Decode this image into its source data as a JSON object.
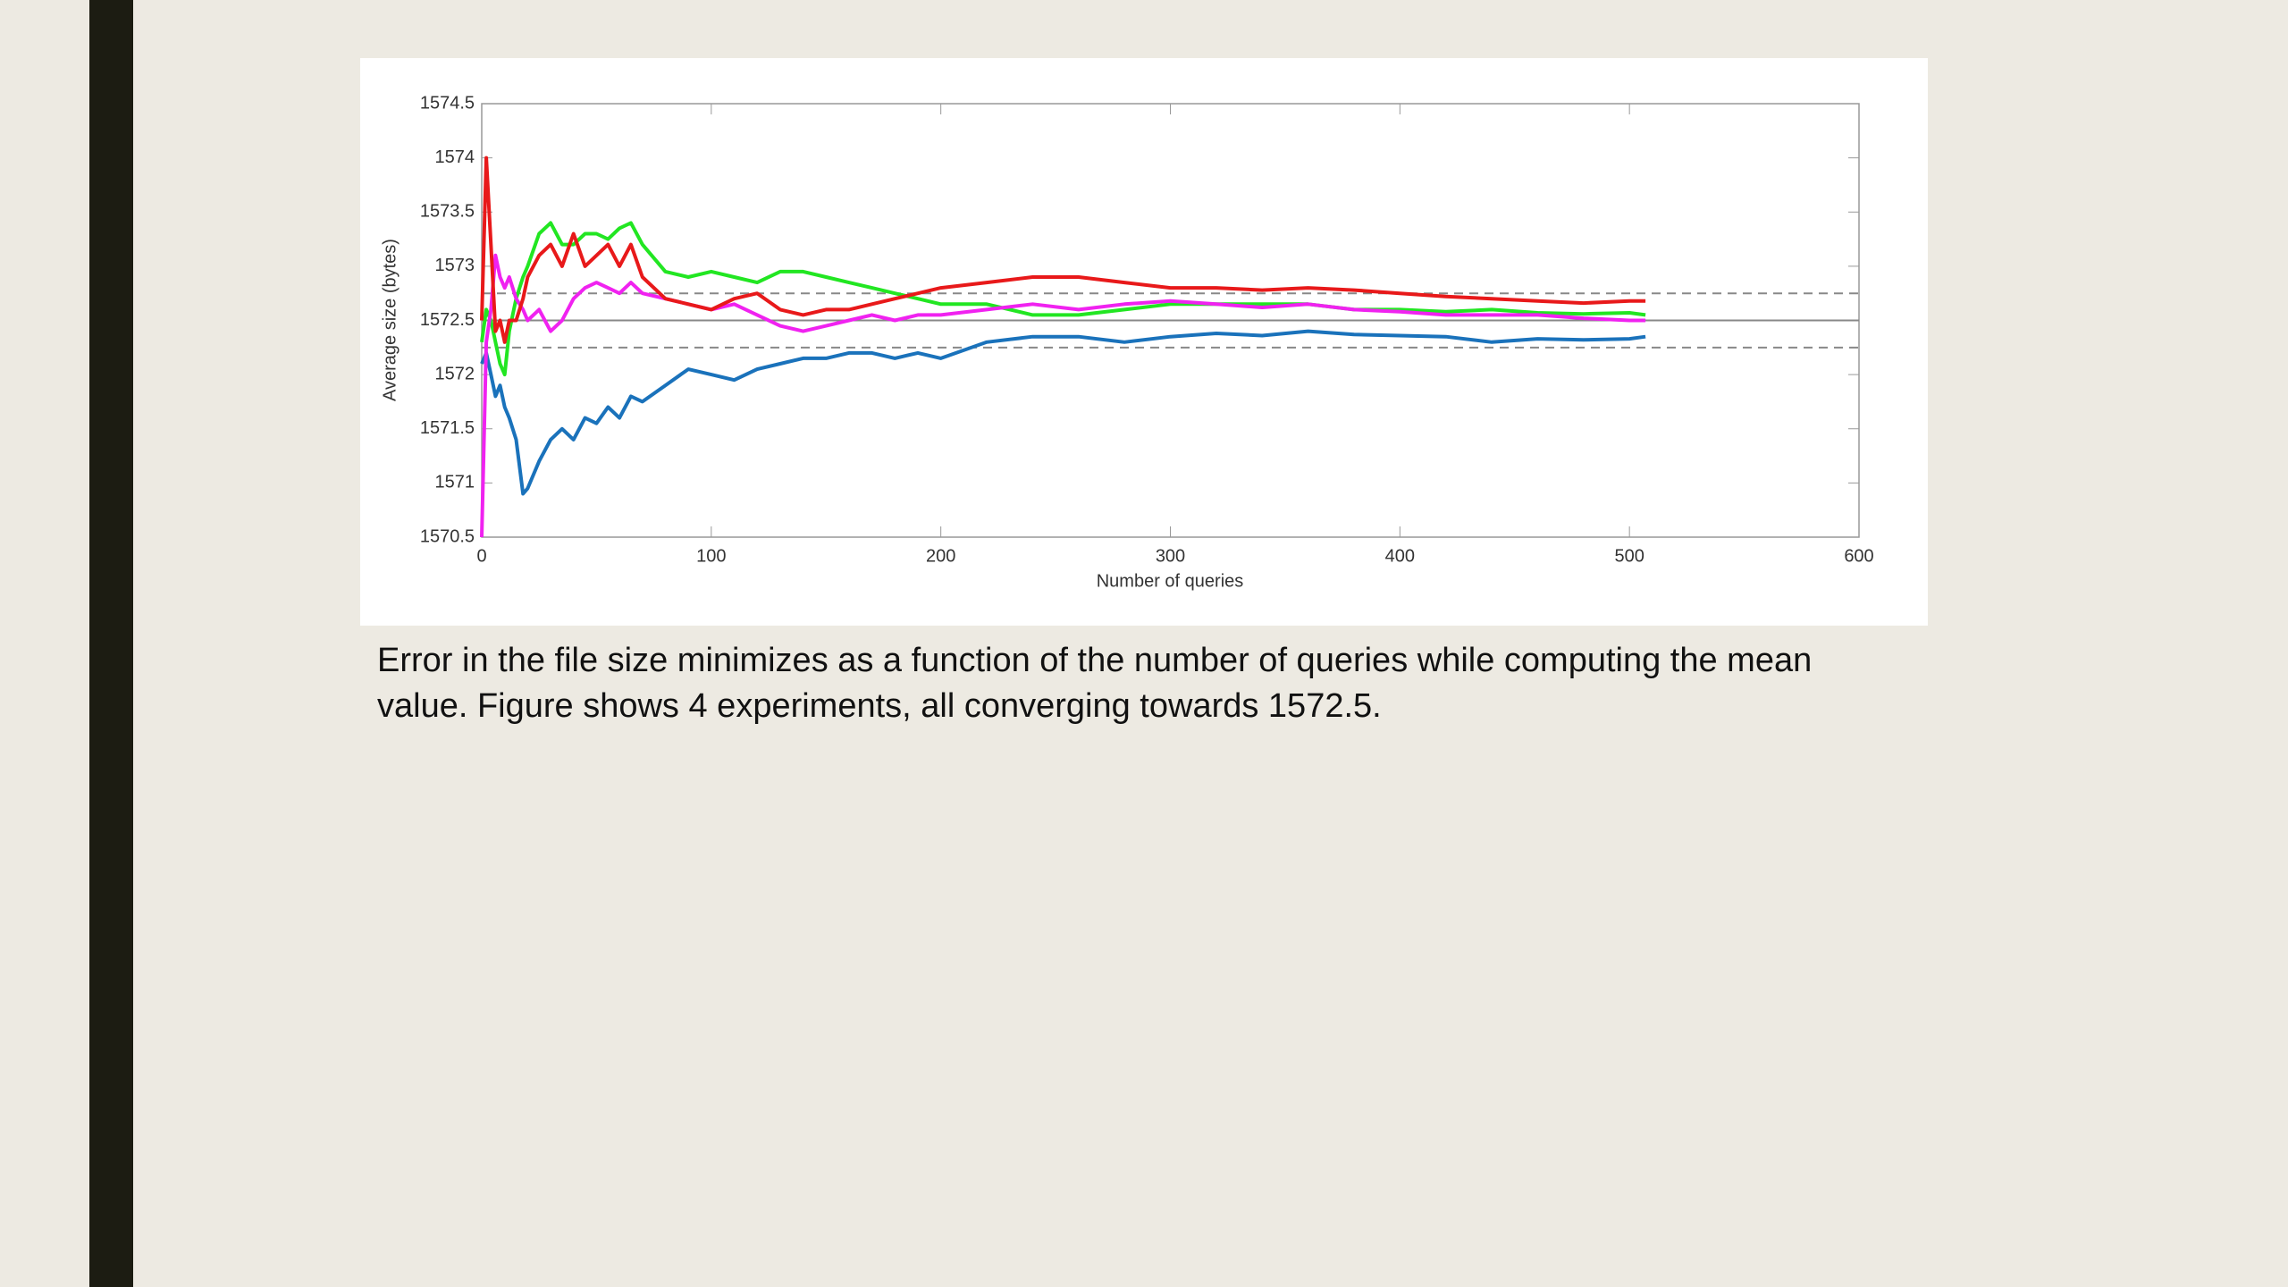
{
  "chart_data": {
    "type": "line",
    "xlabel": "Number of queries",
    "ylabel": "Average size (bytes)",
    "xlim": [
      0,
      600
    ],
    "xticks": [
      0,
      100,
      200,
      300,
      400,
      500,
      600
    ],
    "ylim": [
      1570.5,
      1574.5
    ],
    "yticks": [
      1570.5,
      1571,
      1571.5,
      1572,
      1572.5,
      1573,
      1573.5,
      1574,
      1574.5
    ],
    "grid": false,
    "reference_lines": [
      {
        "value": 1572.5,
        "dashed": false,
        "color": "#888888"
      },
      {
        "value": 1572.75,
        "dashed": true,
        "color": "#888888"
      },
      {
        "value": 1572.25,
        "dashed": true,
        "color": "#888888"
      }
    ],
    "x": [
      0,
      2,
      4,
      6,
      8,
      10,
      12,
      15,
      18,
      20,
      25,
      30,
      35,
      40,
      45,
      50,
      55,
      60,
      65,
      70,
      80,
      90,
      100,
      110,
      120,
      130,
      140,
      150,
      160,
      170,
      180,
      190,
      200,
      220,
      240,
      260,
      280,
      300,
      320,
      340,
      360,
      380,
      400,
      420,
      440,
      460,
      480,
      500,
      507
    ],
    "series": [
      {
        "color": "#1a72bb",
        "values": [
          1572.1,
          1572.2,
          1572.0,
          1571.8,
          1571.9,
          1571.7,
          1571.6,
          1571.4,
          1570.9,
          1570.95,
          1571.2,
          1571.4,
          1571.5,
          1571.4,
          1571.6,
          1571.55,
          1571.7,
          1571.6,
          1571.8,
          1571.75,
          1571.9,
          1572.05,
          1572.0,
          1571.95,
          1572.05,
          1572.1,
          1572.15,
          1572.15,
          1572.2,
          1572.2,
          1572.15,
          1572.2,
          1572.15,
          1572.3,
          1572.35,
          1572.35,
          1572.3,
          1572.35,
          1572.38,
          1572.36,
          1572.4,
          1572.37,
          1572.36,
          1572.35,
          1572.3,
          1572.33,
          1572.32,
          1572.33,
          1572.35
        ]
      },
      {
        "color": "#22e622",
        "values": [
          1572.3,
          1572.6,
          1572.5,
          1572.3,
          1572.1,
          1572.0,
          1572.4,
          1572.7,
          1572.9,
          1573.0,
          1573.3,
          1573.4,
          1573.2,
          1573.2,
          1573.3,
          1573.3,
          1573.25,
          1573.35,
          1573.4,
          1573.2,
          1572.95,
          1572.9,
          1572.95,
          1572.9,
          1572.85,
          1572.95,
          1572.95,
          1572.9,
          1572.85,
          1572.8,
          1572.75,
          1572.7,
          1572.65,
          1572.65,
          1572.55,
          1572.55,
          1572.6,
          1572.65,
          1572.65,
          1572.65,
          1572.65,
          1572.6,
          1572.6,
          1572.58,
          1572.6,
          1572.57,
          1572.56,
          1572.57,
          1572.55
        ]
      },
      {
        "color": "#f022f0",
        "values": [
          1570.5,
          1572.3,
          1572.6,
          1573.1,
          1572.9,
          1572.8,
          1572.9,
          1572.7,
          1572.6,
          1572.5,
          1572.6,
          1572.4,
          1572.5,
          1572.7,
          1572.8,
          1572.85,
          1572.8,
          1572.75,
          1572.85,
          1572.75,
          1572.7,
          1572.65,
          1572.6,
          1572.65,
          1572.55,
          1572.45,
          1572.4,
          1572.45,
          1572.5,
          1572.55,
          1572.5,
          1572.55,
          1572.55,
          1572.6,
          1572.65,
          1572.6,
          1572.65,
          1572.68,
          1572.65,
          1572.62,
          1572.65,
          1572.6,
          1572.58,
          1572.55,
          1572.55,
          1572.55,
          1572.52,
          1572.5,
          1572.5
        ]
      },
      {
        "color": "#e8191a",
        "values": [
          1572.5,
          1574.0,
          1573.2,
          1572.4,
          1572.5,
          1572.3,
          1572.5,
          1572.5,
          1572.7,
          1572.9,
          1573.1,
          1573.2,
          1573.0,
          1573.3,
          1573.0,
          1573.1,
          1573.2,
          1573.0,
          1573.2,
          1572.9,
          1572.7,
          1572.65,
          1572.6,
          1572.7,
          1572.75,
          1572.6,
          1572.55,
          1572.6,
          1572.6,
          1572.65,
          1572.7,
          1572.75,
          1572.8,
          1572.85,
          1572.9,
          1572.9,
          1572.85,
          1572.8,
          1572.8,
          1572.78,
          1572.8,
          1572.78,
          1572.75,
          1572.72,
          1572.7,
          1572.68,
          1572.66,
          1572.68,
          1572.68
        ]
      }
    ]
  },
  "caption": "Error in the file size minimizes as a function of the number of queries while computing the mean value. Figure shows 4 experiments, all converging towards 1572.5."
}
